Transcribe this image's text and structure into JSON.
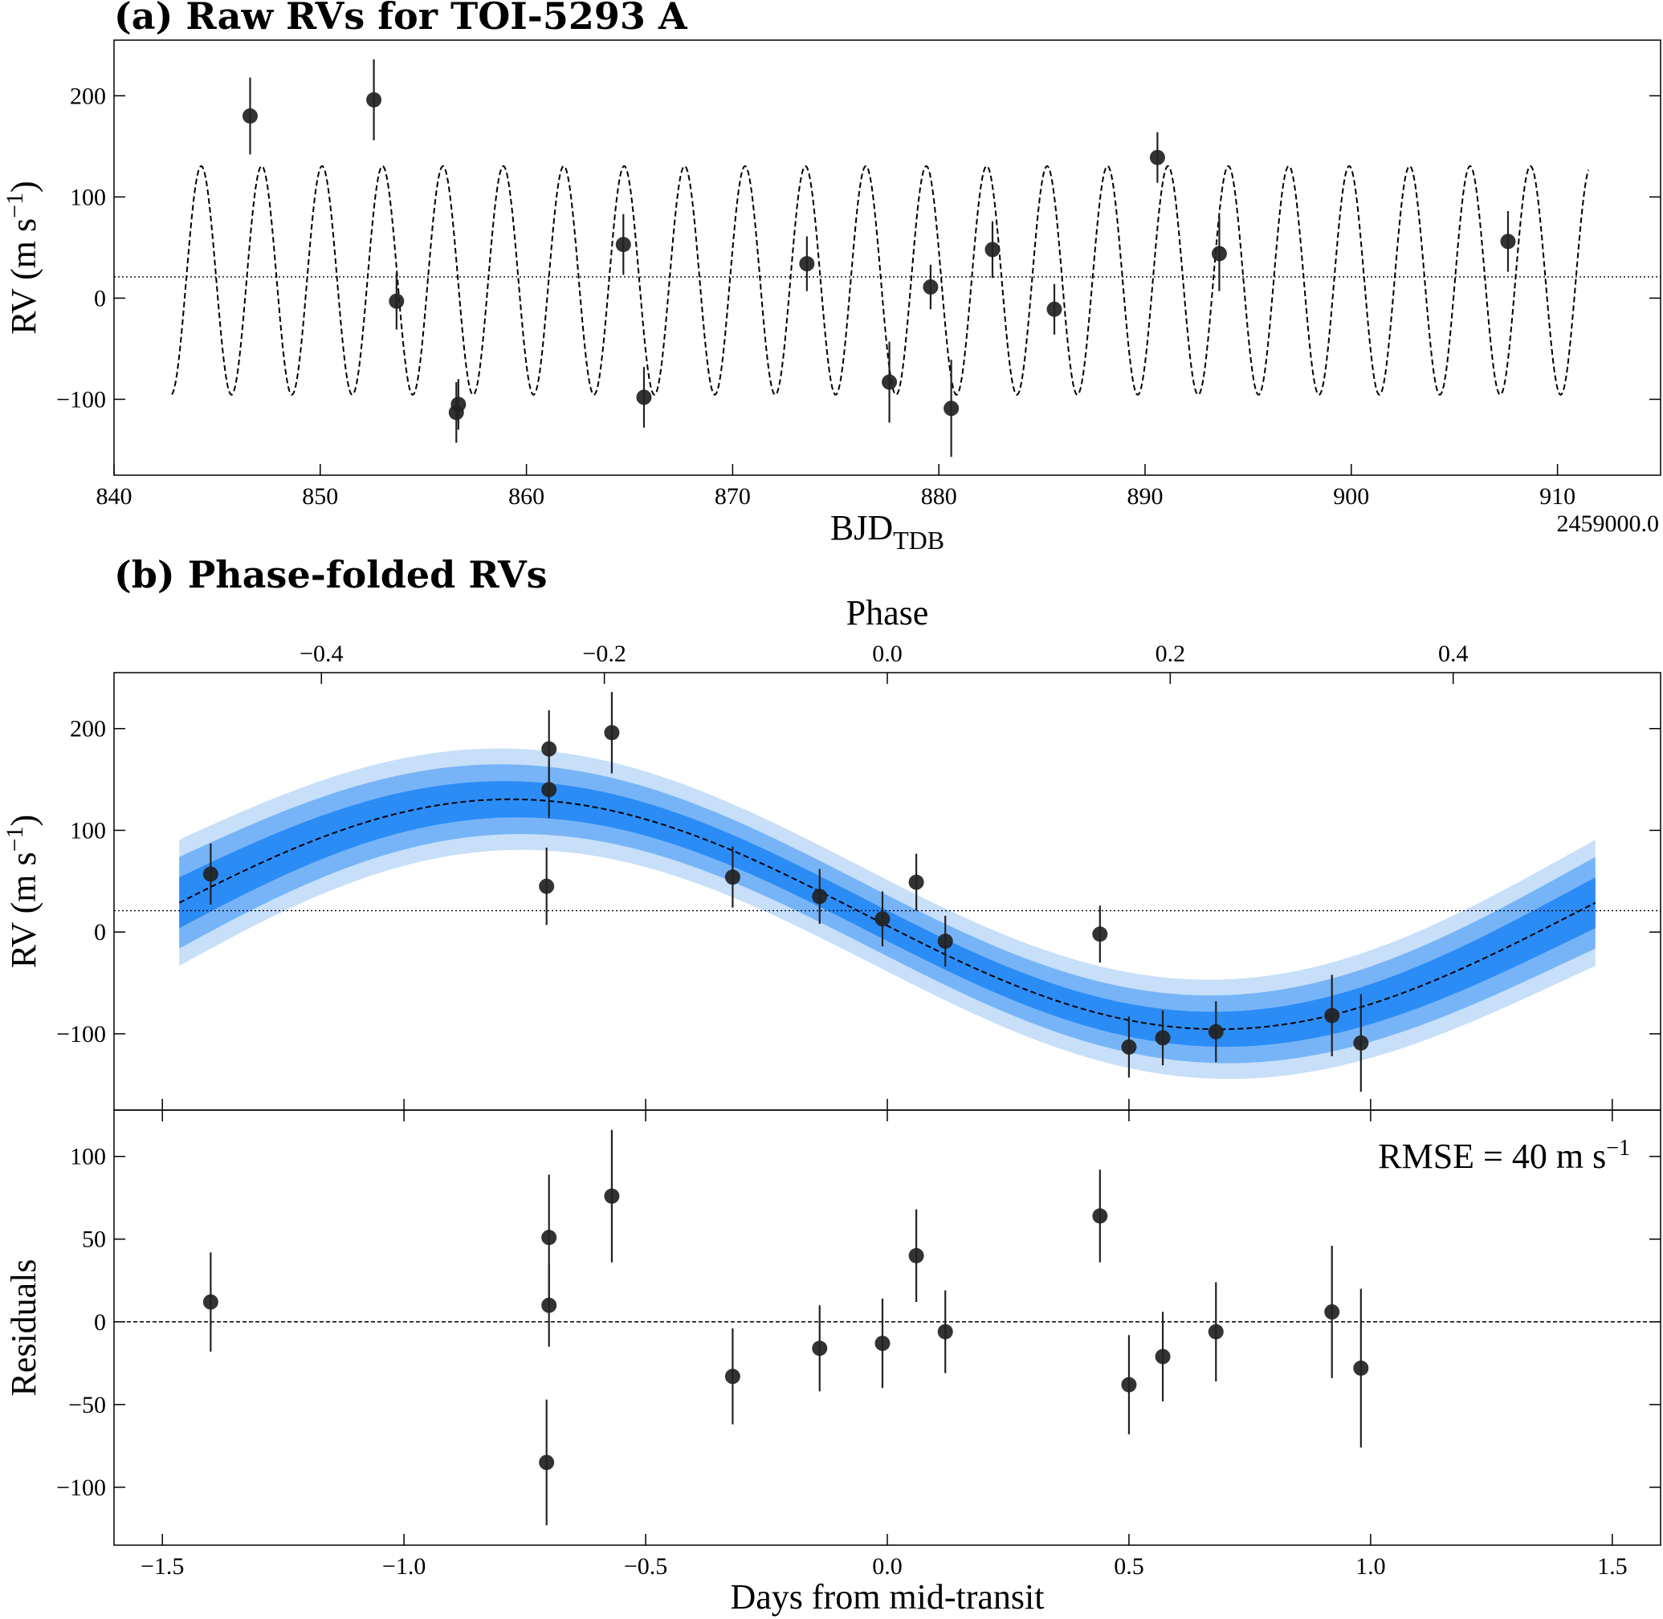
{
  "chart_data": [
    {
      "id": "panel-a",
      "type": "scatter",
      "title": "(a) Raw RVs for TOI-5293 A",
      "xlabel": "BJD",
      "xlabel_sub": "TDB",
      "x_offset_label": "2459000.0",
      "ylabel": "RV (m s",
      "ylabel_sup": "−1",
      "ylabel_close": ")",
      "xlim": [
        840,
        915
      ],
      "ylim": [
        -175,
        255
      ],
      "xticks": [
        840,
        850,
        860,
        870,
        880,
        890,
        900,
        910
      ],
      "yticks": [
        -100,
        0,
        100,
        200
      ],
      "model": {
        "type": "sine",
        "offset": 17.5,
        "amplitude": 113,
        "period": 2.93,
        "t0": 841.3,
        "xrange": [
          842.8,
          911.5
        ]
      },
      "offset_line": 21,
      "points": [
        {
          "x": 846.6,
          "y": 180,
          "err": 38
        },
        {
          "x": 852.6,
          "y": 196,
          "err": 40
        },
        {
          "x": 853.7,
          "y": -3,
          "err": 28
        },
        {
          "x": 856.6,
          "y": -113,
          "err": 30
        },
        {
          "x": 856.7,
          "y": -105,
          "err": 25
        },
        {
          "x": 864.7,
          "y": 53,
          "err": 30
        },
        {
          "x": 865.7,
          "y": -98,
          "err": 30
        },
        {
          "x": 873.6,
          "y": 34,
          "err": 27
        },
        {
          "x": 877.6,
          "y": -83,
          "err": 40
        },
        {
          "x": 879.6,
          "y": 11,
          "err": 22
        },
        {
          "x": 880.6,
          "y": -109,
          "err": 48
        },
        {
          "x": 882.6,
          "y": 48,
          "err": 28
        },
        {
          "x": 885.6,
          "y": -11,
          "err": 25
        },
        {
          "x": 890.6,
          "y": 139,
          "err": 25
        },
        {
          "x": 893.6,
          "y": 44,
          "err": 37
        },
        {
          "x": 907.6,
          "y": 56,
          "err": 30
        }
      ]
    },
    {
      "id": "panel-b",
      "type": "scatter",
      "title": "(b) Phase-folded RVs",
      "top_xlabel": "Phase",
      "ylabel": "RV (m s",
      "ylabel_sup": "−1",
      "ylabel_close": ")",
      "xlim": [
        -1.6,
        1.6
      ],
      "ylim": [
        -175,
        255
      ],
      "top_xlim": [
        -0.5466,
        0.5466
      ],
      "top_xticks": [
        -0.4,
        -0.2,
        0.0,
        0.2,
        0.4
      ],
      "yticks": [
        -100,
        0,
        100,
        200
      ],
      "xticks": [
        -1.5,
        -1.0,
        -0.5,
        0.0,
        0.5,
        1.0,
        1.5
      ],
      "model": {
        "type": "sine",
        "offset": 17.5,
        "amplitude": 113,
        "period": 2.93,
        "phase_shift": -0.17,
        "xrange": [
          -1.465,
          1.465
        ]
      },
      "bands": [
        {
          "sigma": 3,
          "half_width_edge": 62,
          "half_width_mid": 45,
          "color": "#c7dff9"
        },
        {
          "sigma": 2,
          "half_width_edge": 45,
          "half_width_mid": 30,
          "color": "#77b4f7"
        },
        {
          "sigma": 1,
          "half_width_edge": 25,
          "half_width_mid": 15,
          "color": "#2b8cf6"
        }
      ],
      "offset_line": 21,
      "points": [
        {
          "x": -1.4,
          "y": 57,
          "err": 30
        },
        {
          "x": -0.705,
          "y": 45,
          "err": 38
        },
        {
          "x": -0.7,
          "y": 180,
          "err": 38
        },
        {
          "x": -0.7,
          "y": 140,
          "err": 28
        },
        {
          "x": -0.57,
          "y": 196,
          "err": 40
        },
        {
          "x": -0.32,
          "y": 54,
          "err": 30
        },
        {
          "x": -0.14,
          "y": 35,
          "err": 27
        },
        {
          "x": -0.01,
          "y": 13,
          "err": 27
        },
        {
          "x": 0.06,
          "y": 49,
          "err": 28
        },
        {
          "x": 0.12,
          "y": -9,
          "err": 25
        },
        {
          "x": 0.44,
          "y": -2,
          "err": 28
        },
        {
          "x": 0.5,
          "y": -113,
          "err": 30
        },
        {
          "x": 0.57,
          "y": -104,
          "err": 27
        },
        {
          "x": 0.68,
          "y": -98,
          "err": 30
        },
        {
          "x": 0.92,
          "y": -82,
          "err": 40
        },
        {
          "x": 0.98,
          "y": -109,
          "err": 48
        }
      ]
    },
    {
      "id": "panel-c",
      "type": "scatter",
      "xlabel": "Days from mid-transit",
      "ylabel": "Residuals",
      "annotation": "RMSE = 40 m s",
      "annotation_sup": "−1",
      "xlim": [
        -1.6,
        1.6
      ],
      "ylim": [
        -135,
        128
      ],
      "xticks": [
        -1.5,
        -1.0,
        -0.5,
        0.0,
        0.5,
        1.0,
        1.5
      ],
      "yticks": [
        -100,
        -50,
        0,
        50,
        100
      ],
      "zero_line": 0,
      "points": [
        {
          "x": -1.4,
          "y": 12,
          "err": 30
        },
        {
          "x": -0.705,
          "y": -85,
          "err": 38
        },
        {
          "x": -0.7,
          "y": 51,
          "err": 38
        },
        {
          "x": -0.7,
          "y": 10,
          "err": 25
        },
        {
          "x": -0.57,
          "y": 76,
          "err": 40
        },
        {
          "x": -0.32,
          "y": -33,
          "err": 29
        },
        {
          "x": -0.14,
          "y": -16,
          "err": 26
        },
        {
          "x": -0.01,
          "y": -13,
          "err": 27
        },
        {
          "x": 0.06,
          "y": 40,
          "err": 28
        },
        {
          "x": 0.12,
          "y": -6,
          "err": 25
        },
        {
          "x": 0.44,
          "y": 64,
          "err": 28
        },
        {
          "x": 0.5,
          "y": -38,
          "err": 30
        },
        {
          "x": 0.57,
          "y": -21,
          "err": 27
        },
        {
          "x": 0.68,
          "y": -6,
          "err": 30
        },
        {
          "x": 0.92,
          "y": 6,
          "err": 40
        },
        {
          "x": 0.98,
          "y": -28,
          "err": 48
        }
      ]
    }
  ]
}
